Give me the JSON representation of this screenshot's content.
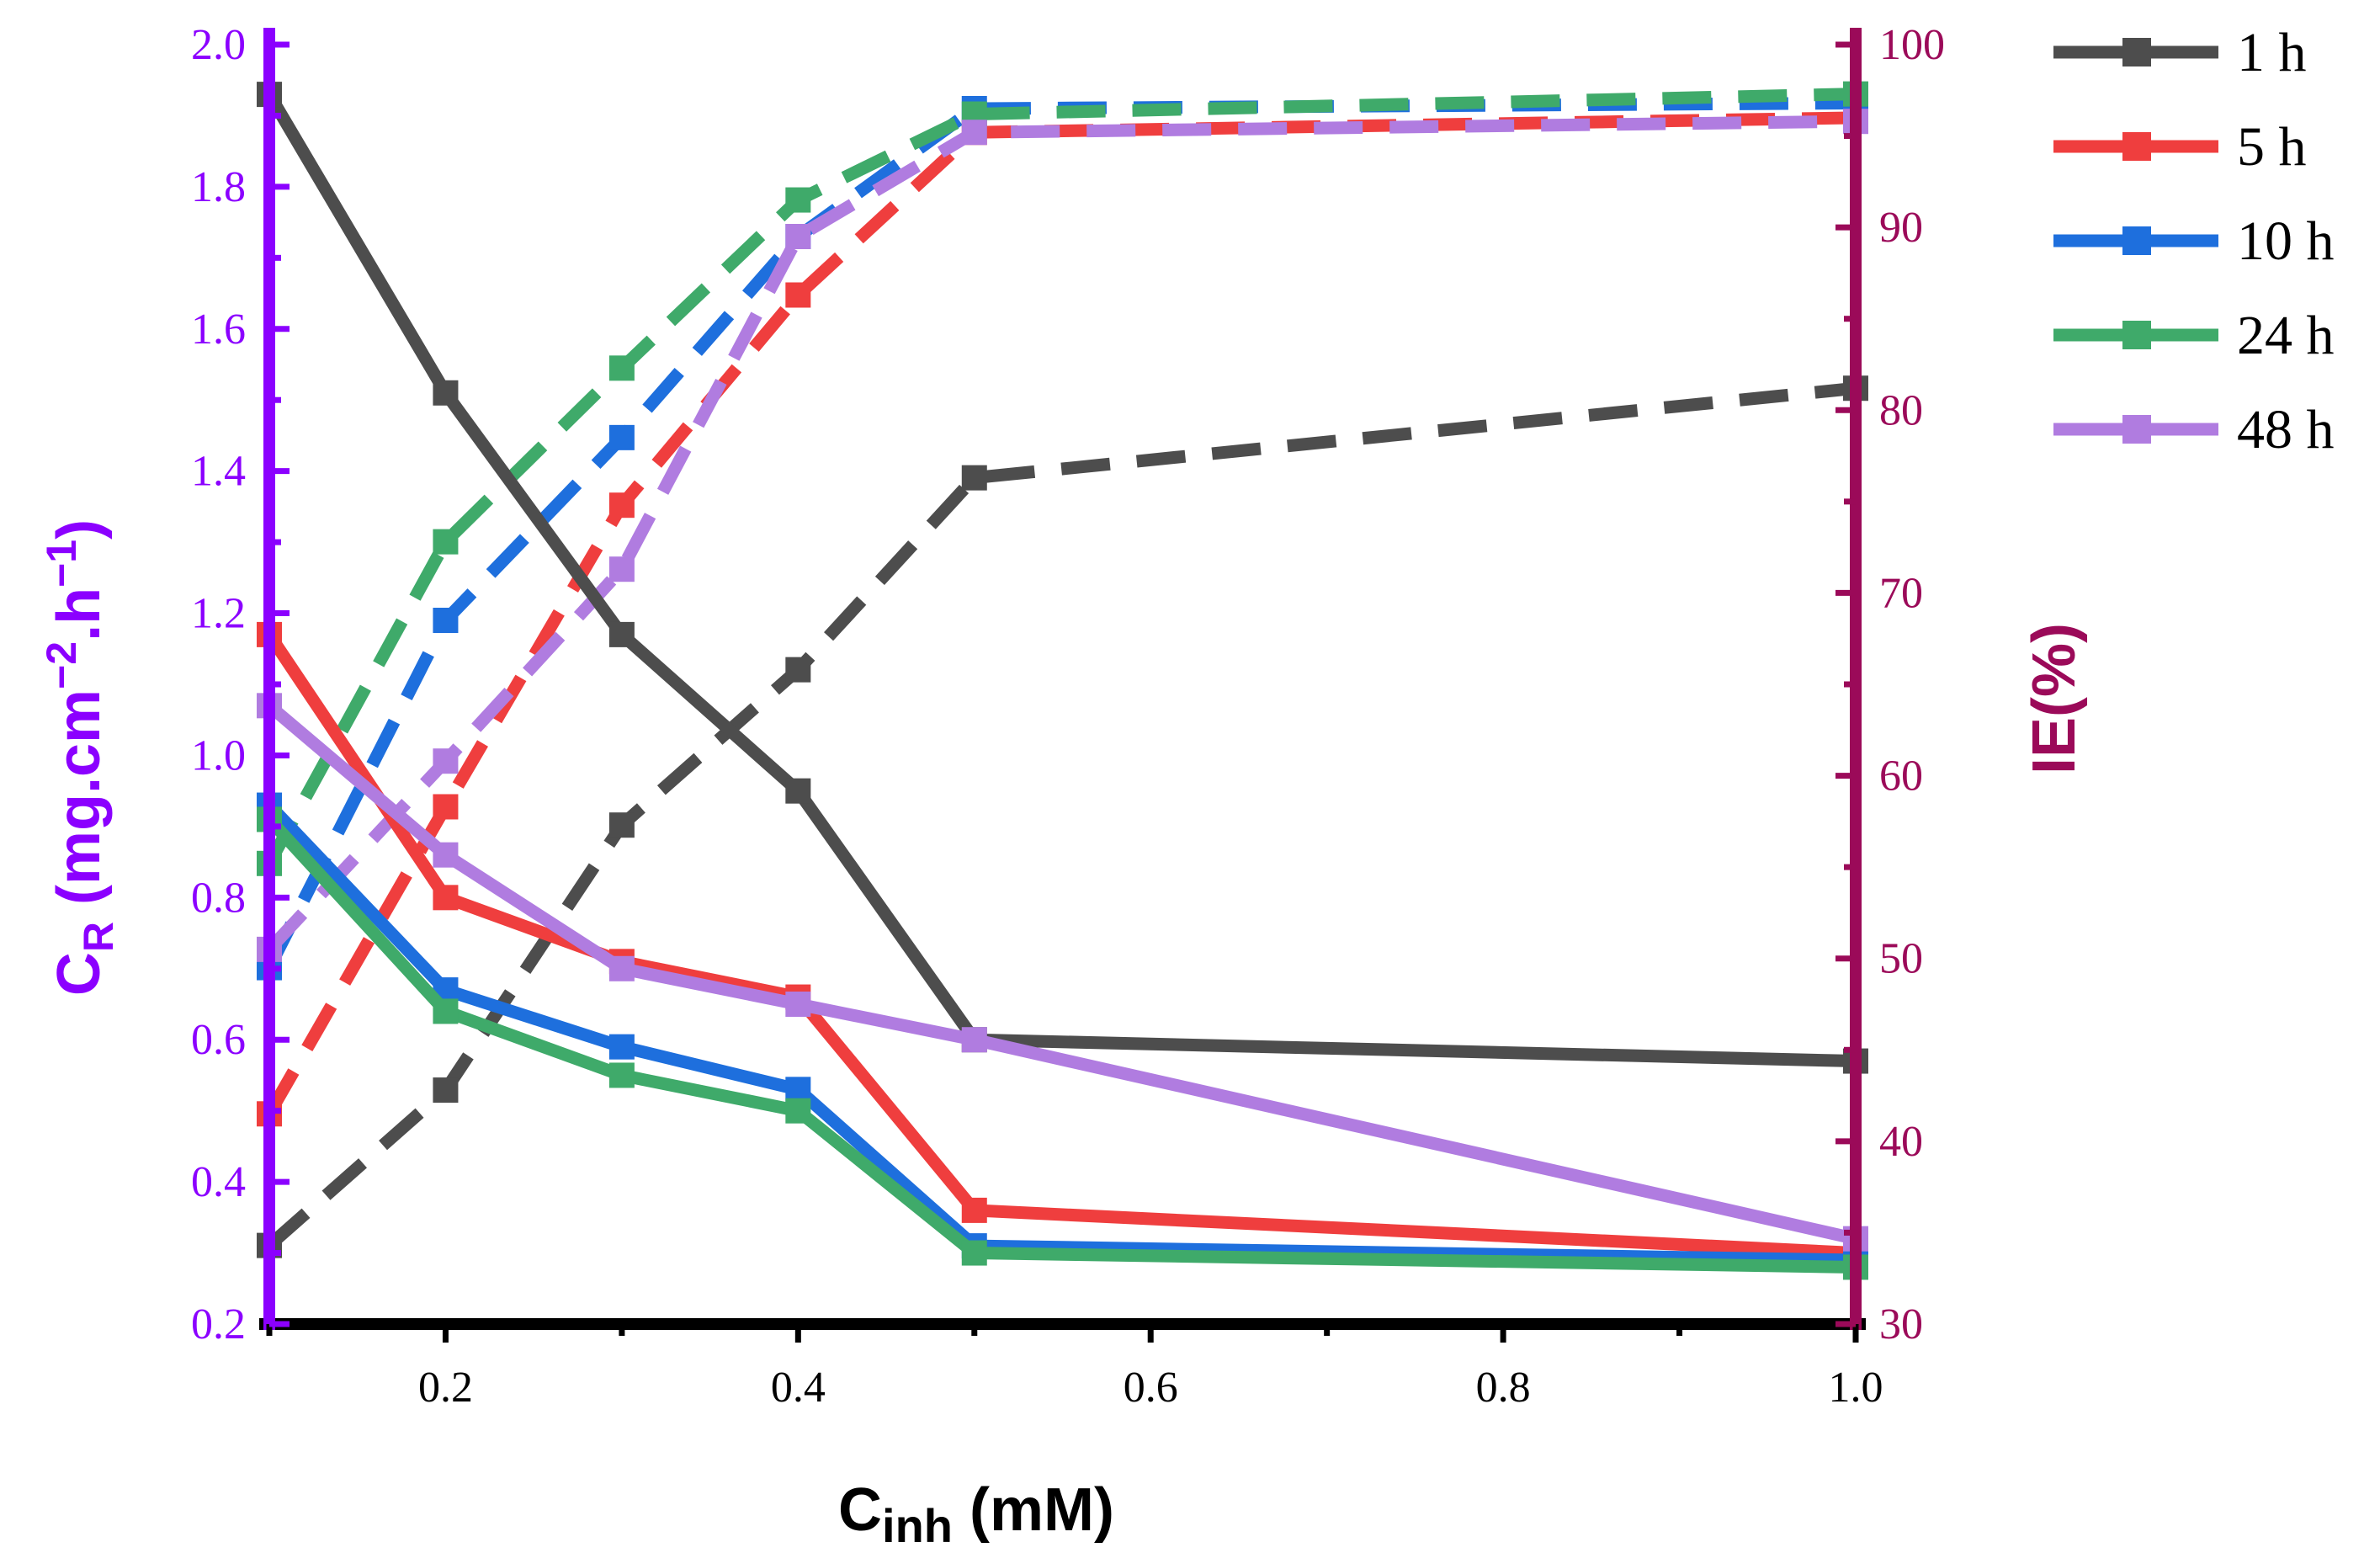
{
  "chart_data": {
    "type": "line",
    "xlabel_main": "C",
    "xlabel_sub": "inh",
    "xlabel_unit": " (mM)",
    "ylabel_left_main": "C",
    "ylabel_left_sub": "R",
    "ylabel_left_unit_a": " (mg.cm",
    "ylabel_left_sup_a": "−2",
    "ylabel_left_unit_b": ".h",
    "ylabel_left_sup_b": "−1",
    "ylabel_left_unit_c": ")",
    "ylabel_right": "IE(%)",
    "x": [
      0.1,
      0.2,
      0.3,
      0.4,
      0.5,
      1.0
    ],
    "xlim": [
      0.1,
      1.0
    ],
    "ylim_left": [
      0.2,
      2.0
    ],
    "ylim_right": [
      30,
      100
    ],
    "x_ticks": [
      "0.2",
      "0.4",
      "0.6",
      "0.8",
      "1.0"
    ],
    "x_tick_values": [
      0.2,
      0.4,
      0.6,
      0.8,
      1.0
    ],
    "y_left_ticks": [
      "0.2",
      "0.4",
      "0.6",
      "0.8",
      "1.0",
      "1.2",
      "1.4",
      "1.6",
      "1.8",
      "2.0"
    ],
    "y_left_tick_values": [
      0.2,
      0.4,
      0.6,
      0.8,
      1.0,
      1.2,
      1.4,
      1.6,
      1.8,
      2.0
    ],
    "y_right_ticks": [
      "30",
      "40",
      "50",
      "60",
      "70",
      "80",
      "90",
      "100"
    ],
    "y_right_tick_values": [
      30,
      40,
      50,
      60,
      70,
      80,
      90,
      100
    ],
    "colors": {
      "left_axis": "#8B00FF",
      "right_axis": "#9B0A59",
      "bottom_axis": "#000000"
    },
    "legend_position": "top-right",
    "series": [
      {
        "name": "1 h",
        "color": "#4D4D4D",
        "cr": [
          1.93,
          1.51,
          1.17,
          0.95,
          0.6,
          0.57
        ],
        "ie": [
          34.3,
          42.8,
          57.3,
          65.8,
          76.3,
          81.2
        ]
      },
      {
        "name": "5 h",
        "color": "#EF3E3E",
        "cr": [
          1.17,
          0.8,
          0.71,
          0.66,
          0.36,
          0.3
        ],
        "ie": [
          41.5,
          58.3,
          74.8,
          86.3,
          95.2,
          96.0
        ]
      },
      {
        "name": "10 h",
        "color": "#1E6FDD",
        "cr": [
          0.93,
          0.67,
          0.59,
          0.53,
          0.31,
          0.29
        ],
        "ie": [
          49.5,
          68.5,
          78.5,
          89.5,
          96.5,
          96.8
        ]
      },
      {
        "name": "24 h",
        "color": "#3FAA6A",
        "cr": [
          0.91,
          0.64,
          0.55,
          0.5,
          0.3,
          0.28
        ],
        "ie": [
          55.2,
          72.8,
          82.3,
          91.5,
          96.2,
          97.3
        ]
      },
      {
        "name": "48 h",
        "color": "#B07CE0",
        "cr": [
          1.07,
          0.86,
          0.7,
          0.65,
          0.6,
          0.32
        ],
        "ie": [
          50.5,
          60.8,
          71.3,
          89.5,
          95.2,
          95.8
        ]
      }
    ]
  }
}
